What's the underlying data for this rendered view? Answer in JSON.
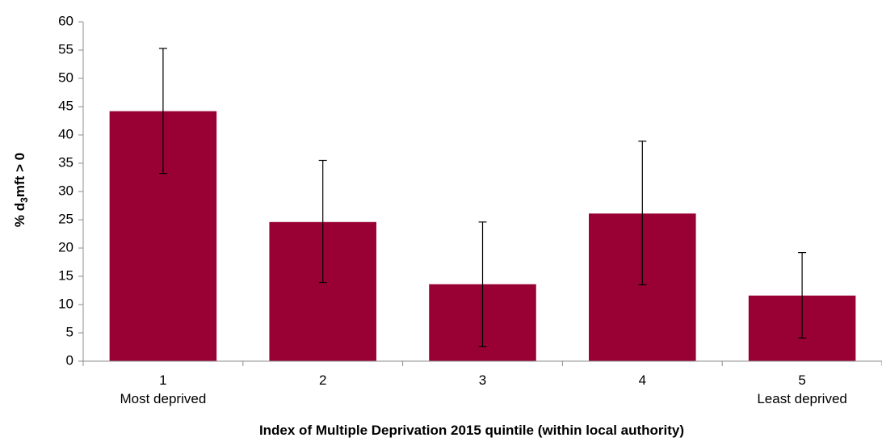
{
  "chart_data": {
    "type": "bar",
    "categories": [
      "1",
      "2",
      "3",
      "4",
      "5"
    ],
    "category_sublabels": [
      "Most deprived",
      "",
      "",
      "",
      "Least deprived"
    ],
    "values": [
      44.2,
      24.6,
      13.6,
      26.1,
      11.6
    ],
    "error_low": [
      33.2,
      13.9,
      2.6,
      13.5,
      4.1
    ],
    "error_high": [
      55.3,
      35.5,
      24.6,
      38.9,
      19.2
    ],
    "title": "",
    "xlabel": "Index of Multiple Deprivation 2015 quintile (within local authority)",
    "ylabel": "% d3mft > 0",
    "ylabel_parts": {
      "pre": "% d",
      "sub": "3",
      "post": "mft > 0"
    },
    "ylim": [
      0,
      60
    ],
    "yticks": [
      0,
      5,
      10,
      15,
      20,
      25,
      30,
      35,
      40,
      45,
      50,
      55,
      60
    ],
    "grid": false,
    "legend": "none",
    "colors": {
      "bar": "#990033",
      "axis": "#8c8c8c",
      "error": "#000000"
    }
  }
}
